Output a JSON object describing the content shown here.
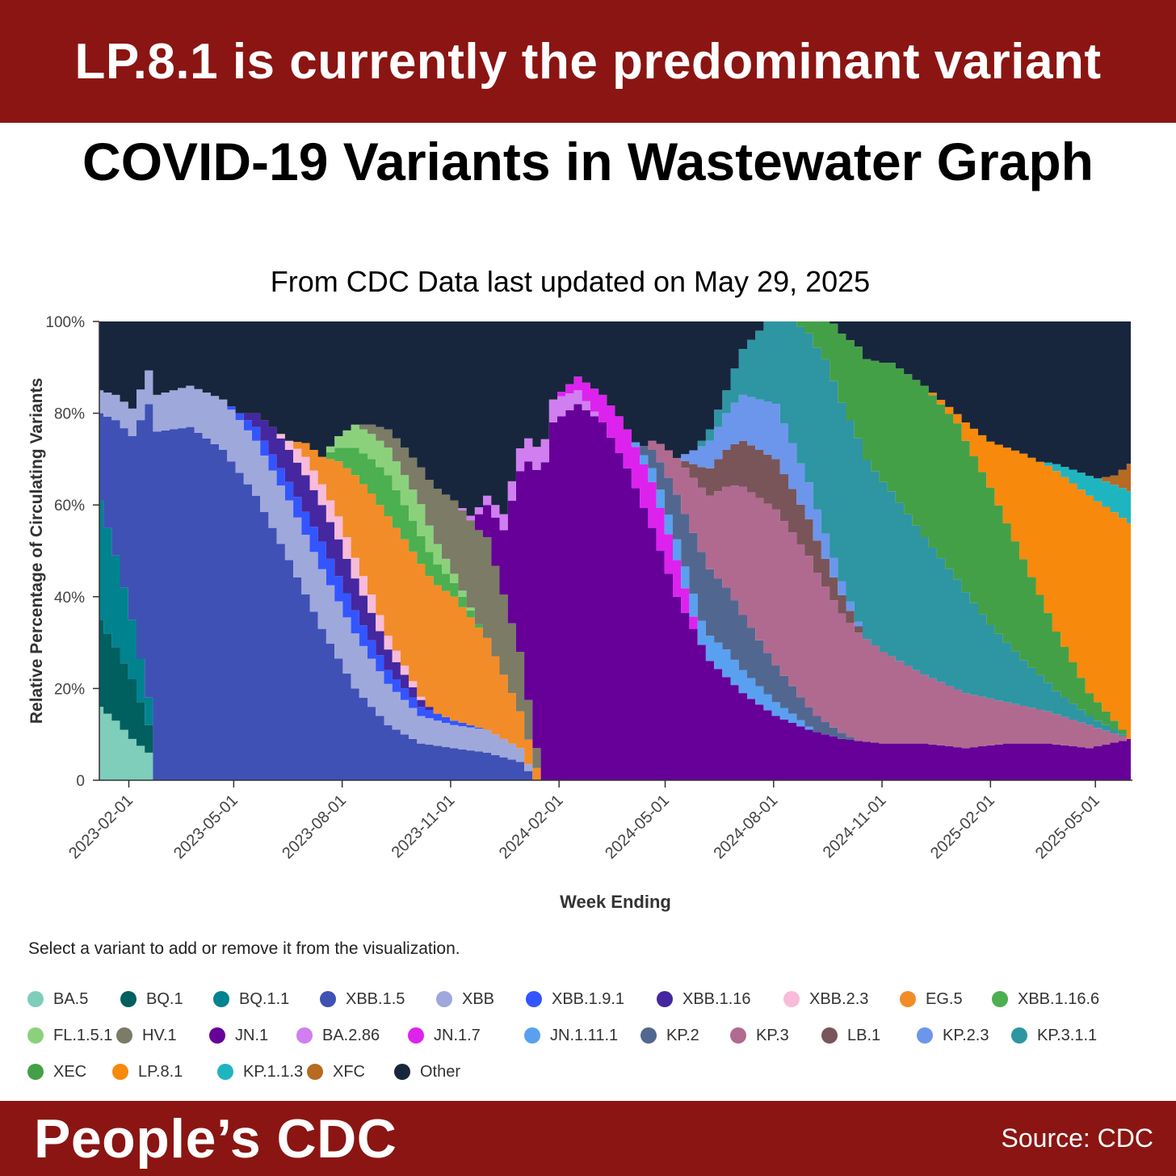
{
  "header": {
    "banner": "LP.8.1 is currently the predominant variant"
  },
  "chart_data": {
    "type": "area",
    "title": "COVID-19 Variants in Wastewater Graph",
    "subtitle": "From CDC Data last updated on May 29, 2025",
    "xlabel": "Week Ending",
    "ylabel": "Relative Percentage of Circulating Variants",
    "ylim": [
      0,
      100
    ],
    "y_ticks": [
      "0",
      "20%",
      "40%",
      "60%",
      "80%",
      "100%"
    ],
    "x_ticks": [
      "2023-02-01",
      "2023-05-01",
      "2023-08-01",
      "2023-11-01",
      "2024-02-01",
      "2024-05-01",
      "2024-08-01",
      "2024-11-01",
      "2025-02-01",
      "2025-05-01"
    ],
    "x_start": "2023-01-07",
    "x_end": "2025-05-31",
    "stacked": true,
    "grid": false,
    "series": [
      {
        "name": "BA.5",
        "color": "#7fcdbb",
        "points": [
          [
            "2023-01-07",
            16
          ],
          [
            "2023-01-21",
            13
          ],
          [
            "2023-02-04",
            9
          ],
          [
            "2023-02-18",
            6
          ],
          [
            "2023-02-25",
            0
          ]
        ]
      },
      {
        "name": "BQ.1",
        "color": "#005f5f",
        "points": [
          [
            "2023-01-07",
            19
          ],
          [
            "2023-01-21",
            16
          ],
          [
            "2023-02-04",
            13
          ],
          [
            "2023-02-18",
            6
          ],
          [
            "2023-02-25",
            0
          ]
        ]
      },
      {
        "name": "BQ.1.1",
        "color": "#00838f",
        "points": [
          [
            "2023-01-07",
            26
          ],
          [
            "2023-01-21",
            20
          ],
          [
            "2023-02-04",
            13
          ],
          [
            "2023-02-18",
            6
          ],
          [
            "2023-02-25",
            0
          ]
        ]
      },
      {
        "name": "XBB.1.5",
        "color": "#3f51b5",
        "points": [
          [
            "2023-01-07",
            19
          ],
          [
            "2023-02-04",
            40
          ],
          [
            "2023-02-25",
            76
          ],
          [
            "2023-03-25",
            77
          ],
          [
            "2023-04-22",
            72
          ],
          [
            "2023-05-20",
            62
          ],
          [
            "2023-06-17",
            48
          ],
          [
            "2023-07-15",
            33
          ],
          [
            "2023-08-12",
            20
          ],
          [
            "2023-09-09",
            12
          ],
          [
            "2023-10-07",
            8
          ],
          [
            "2023-11-04",
            7
          ],
          [
            "2023-12-02",
            6
          ],
          [
            "2023-12-30",
            4
          ],
          [
            "2024-01-13",
            0
          ]
        ]
      },
      {
        "name": "XBB",
        "color": "#9fa8da",
        "points": [
          [
            "2023-01-07",
            5
          ],
          [
            "2023-02-04",
            6
          ],
          [
            "2023-02-25",
            8
          ],
          [
            "2023-03-25",
            9
          ],
          [
            "2023-04-22",
            11
          ],
          [
            "2023-05-20",
            12
          ],
          [
            "2023-06-17",
            13
          ],
          [
            "2023-07-15",
            13
          ],
          [
            "2023-08-12",
            12
          ],
          [
            "2023-09-09",
            9
          ],
          [
            "2023-10-07",
            6
          ],
          [
            "2023-11-04",
            5
          ],
          [
            "2023-12-02",
            5
          ],
          [
            "2023-12-30",
            3
          ],
          [
            "2024-01-13",
            0
          ]
        ]
      },
      {
        "name": "XBB.1.9.1",
        "color": "#3355ff",
        "points": [
          [
            "2023-04-22",
            0
          ],
          [
            "2023-05-20",
            3
          ],
          [
            "2023-06-17",
            4
          ],
          [
            "2023-07-15",
            6
          ],
          [
            "2023-08-12",
            5
          ],
          [
            "2023-09-09",
            3
          ],
          [
            "2023-10-07",
            2
          ],
          [
            "2023-11-04",
            1
          ],
          [
            "2023-12-02",
            0
          ]
        ]
      },
      {
        "name": "XBB.1.16",
        "color": "#4527a0",
        "points": [
          [
            "2023-05-06",
            0
          ],
          [
            "2023-06-03",
            6
          ],
          [
            "2023-07-01",
            8
          ],
          [
            "2023-07-29",
            8
          ],
          [
            "2023-08-26",
            6
          ],
          [
            "2023-09-23",
            3
          ],
          [
            "2023-10-21",
            0
          ]
        ]
      },
      {
        "name": "XBB.2.3",
        "color": "#f8bbd9",
        "points": [
          [
            "2023-06-03",
            0
          ],
          [
            "2023-07-01",
            4
          ],
          [
            "2023-07-29",
            5
          ],
          [
            "2023-08-26",
            4
          ],
          [
            "2023-09-23",
            2
          ],
          [
            "2023-10-14",
            0
          ]
        ]
      },
      {
        "name": "EG.5",
        "color": "#f28c28",
        "points": [
          [
            "2023-06-17",
            0
          ],
          [
            "2023-07-15",
            6
          ],
          [
            "2023-08-12",
            18
          ],
          [
            "2023-09-09",
            26
          ],
          [
            "2023-10-07",
            29
          ],
          [
            "2023-11-04",
            27
          ],
          [
            "2023-12-02",
            20
          ],
          [
            "2023-12-30",
            8
          ],
          [
            "2024-01-20",
            0
          ]
        ]
      },
      {
        "name": "XBB.1.16.6",
        "color": "#4caf50",
        "points": [
          [
            "2023-07-15",
            0
          ],
          [
            "2023-08-12",
            6
          ],
          [
            "2023-09-09",
            9
          ],
          [
            "2023-10-07",
            6
          ],
          [
            "2023-11-04",
            3
          ],
          [
            "2023-12-02",
            0
          ]
        ]
      },
      {
        "name": "FL.1.5.1",
        "color": "#8bd17c",
        "points": [
          [
            "2023-07-15",
            0
          ],
          [
            "2023-08-12",
            5
          ],
          [
            "2023-09-09",
            6
          ],
          [
            "2023-10-07",
            7
          ],
          [
            "2023-11-04",
            2
          ],
          [
            "2023-11-25",
            0
          ]
        ]
      },
      {
        "name": "HV.1",
        "color": "#7b7b66",
        "points": [
          [
            "2023-08-12",
            0
          ],
          [
            "2023-09-09",
            4
          ],
          [
            "2023-10-07",
            8
          ],
          [
            "2023-11-04",
            16
          ],
          [
            "2023-12-02",
            22
          ],
          [
            "2023-12-30",
            13
          ],
          [
            "2024-01-20",
            0
          ]
        ]
      },
      {
        "name": "JN.1",
        "color": "#660099",
        "points": [
          [
            "2023-11-18",
            0
          ],
          [
            "2023-12-16",
            14
          ],
          [
            "2024-01-06",
            52
          ],
          [
            "2024-01-27",
            78
          ],
          [
            "2024-02-17",
            82
          ],
          [
            "2024-03-09",
            78
          ],
          [
            "2024-03-30",
            68
          ],
          [
            "2024-04-20",
            55
          ],
          [
            "2024-05-11",
            40
          ],
          [
            "2024-06-08",
            26
          ],
          [
            "2024-07-06",
            19
          ],
          [
            "2024-08-03",
            14
          ],
          [
            "2024-08-31",
            11
          ],
          [
            "2024-09-28",
            9
          ],
          [
            "2024-11-02",
            8
          ],
          [
            "2024-12-07",
            8
          ],
          [
            "2025-01-11",
            7
          ],
          [
            "2025-02-15",
            8
          ],
          [
            "2025-03-22",
            8
          ],
          [
            "2025-04-26",
            7
          ],
          [
            "2025-05-31",
            9
          ]
        ]
      },
      {
        "name": "BA.2.86",
        "color": "#d07ef0",
        "points": [
          [
            "2023-11-04",
            0
          ],
          [
            "2023-12-02",
            2
          ],
          [
            "2023-12-30",
            5
          ],
          [
            "2024-01-27",
            5
          ],
          [
            "2024-02-17",
            3
          ],
          [
            "2024-03-09",
            0
          ]
        ]
      },
      {
        "name": "JN.1.7",
        "color": "#dd22ee",
        "points": [
          [
            "2024-01-27",
            0
          ],
          [
            "2024-02-24",
            4
          ],
          [
            "2024-03-23",
            8
          ],
          [
            "2024-04-20",
            10
          ],
          [
            "2024-05-11",
            8
          ],
          [
            "2024-06-01",
            0
          ]
        ]
      },
      {
        "name": "JN.1.11.1",
        "color": "#5aa0f0",
        "points": [
          [
            "2024-03-30",
            0
          ],
          [
            "2024-04-27",
            4
          ],
          [
            "2024-05-25",
            5
          ],
          [
            "2024-06-22",
            6
          ],
          [
            "2024-07-20",
            4
          ],
          [
            "2024-08-17",
            2
          ],
          [
            "2024-09-07",
            0
          ]
        ]
      },
      {
        "name": "KP.2",
        "color": "#52678f",
        "points": [
          [
            "2024-04-06",
            0
          ],
          [
            "2024-05-04",
            8
          ],
          [
            "2024-06-01",
            15
          ],
          [
            "2024-06-29",
            13
          ],
          [
            "2024-07-27",
            9
          ],
          [
            "2024-08-24",
            5
          ],
          [
            "2024-09-21",
            2
          ],
          [
            "2024-10-12",
            0
          ]
        ]
      },
      {
        "name": "KP.3",
        "color": "#b06a90",
        "points": [
          [
            "2024-04-13",
            0
          ],
          [
            "2024-05-11",
            8
          ],
          [
            "2024-06-08",
            16
          ],
          [
            "2024-07-06",
            28
          ],
          [
            "2024-08-03",
            34
          ],
          [
            "2024-08-31",
            33
          ],
          [
            "2024-09-28",
            26
          ],
          [
            "2024-11-02",
            20
          ],
          [
            "2024-12-07",
            15
          ],
          [
            "2025-01-11",
            12
          ],
          [
            "2025-02-15",
            9
          ],
          [
            "2025-03-22",
            7
          ],
          [
            "2025-04-26",
            5
          ],
          [
            "2025-05-31",
            0
          ]
        ]
      },
      {
        "name": "LB.1",
        "color": "#795559",
        "points": [
          [
            "2024-05-11",
            0
          ],
          [
            "2024-06-08",
            6
          ],
          [
            "2024-07-06",
            10
          ],
          [
            "2024-08-03",
            11
          ],
          [
            "2024-08-31",
            8
          ],
          [
            "2024-09-28",
            4
          ],
          [
            "2024-10-19",
            0
          ]
        ]
      },
      {
        "name": "KP.2.3",
        "color": "#6c96ec",
        "points": [
          [
            "2024-05-11",
            0
          ],
          [
            "2024-06-08",
            6
          ],
          [
            "2024-07-06",
            10
          ],
          [
            "2024-08-03",
            12
          ],
          [
            "2024-08-31",
            8
          ],
          [
            "2024-09-28",
            3
          ],
          [
            "2024-10-19",
            0
          ]
        ]
      },
      {
        "name": "KP.3.1.1",
        "color": "#2e95a3",
        "points": [
          [
            "2024-05-25",
            0
          ],
          [
            "2024-06-22",
            5
          ],
          [
            "2024-07-20",
            15
          ],
          [
            "2024-08-17",
            27
          ],
          [
            "2024-09-14",
            38
          ],
          [
            "2024-10-12",
            40
          ],
          [
            "2024-11-09",
            36
          ],
          [
            "2024-12-07",
            30
          ],
          [
            "2025-01-04",
            24
          ],
          [
            "2025-02-01",
            16
          ],
          [
            "2025-03-01",
            10
          ],
          [
            "2025-03-29",
            5
          ],
          [
            "2025-04-26",
            2
          ],
          [
            "2025-05-31",
            0
          ]
        ]
      },
      {
        "name": "XEC",
        "color": "#44a047",
        "points": [
          [
            "2024-07-20",
            0
          ],
          [
            "2024-08-17",
            4
          ],
          [
            "2024-09-14",
            10
          ],
          [
            "2024-10-12",
            20
          ],
          [
            "2024-11-09",
            28
          ],
          [
            "2024-12-07",
            33
          ],
          [
            "2025-01-04",
            34
          ],
          [
            "2025-02-01",
            30
          ],
          [
            "2025-03-01",
            22
          ],
          [
            "2025-03-29",
            13
          ],
          [
            "2025-04-26",
            5
          ],
          [
            "2025-05-31",
            0
          ]
        ]
      },
      {
        "name": "LP.8.1",
        "color": "#f7890c",
        "points": [
          [
            "2024-12-07",
            0
          ],
          [
            "2025-01-04",
            2
          ],
          [
            "2025-02-01",
            10
          ],
          [
            "2025-03-01",
            23
          ],
          [
            "2025-03-29",
            35
          ],
          [
            "2025-04-26",
            43
          ],
          [
            "2025-05-31",
            47
          ]
        ]
      },
      {
        "name": "KP.1.1.3",
        "color": "#1fb5c0",
        "points": [
          [
            "2025-03-15",
            0
          ],
          [
            "2025-04-12",
            3
          ],
          [
            "2025-05-03",
            5
          ],
          [
            "2025-05-31",
            7
          ]
        ]
      },
      {
        "name": "XFC",
        "color": "#b66a22",
        "points": [
          [
            "2025-05-03",
            0
          ],
          [
            "2025-05-17",
            2
          ],
          [
            "2025-05-31",
            6
          ]
        ]
      },
      {
        "name": "Other",
        "color": "#17263d",
        "remainder": true
      }
    ]
  },
  "legend": {
    "note": "Select a variant to add or remove it from the visualization."
  },
  "footer": {
    "brand": "People’s CDC",
    "source": "Source: CDC"
  }
}
